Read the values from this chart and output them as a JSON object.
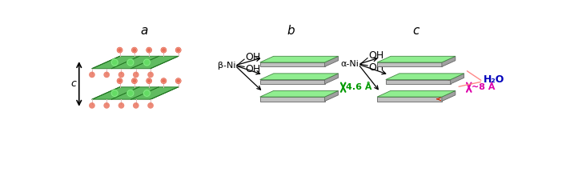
{
  "bg_color": "#ffffff",
  "label_a": "a",
  "label_b": "b",
  "label_c": "c",
  "label_beta_ni": "β-Ni",
  "label_alpha_ni": "α-Ni",
  "label_46A": "4.6 Å",
  "label_8A": "~8 Å",
  "label_H2O": "H₂O",
  "label_c_axis": "c",
  "slab_green": "#90ee90",
  "slab_green_edge": "#448844",
  "slab_gray_side": "#a0a0a0",
  "slab_gray_front": "#c0c0c0",
  "slab_gray_edge": "#666666",
  "crystal_green_fill": "#3aaa3a",
  "crystal_green_edge": "#227722",
  "ni_atom_color": "#22cc22",
  "o_atom_color": "#dd2200",
  "o_atom_outline": "#ffaaaa",
  "arrow_green": "#009900",
  "arrow_magenta": "#dd00aa",
  "arrow_pink": "#ff8888",
  "blue_label": "#0000bb",
  "black": "#111111"
}
